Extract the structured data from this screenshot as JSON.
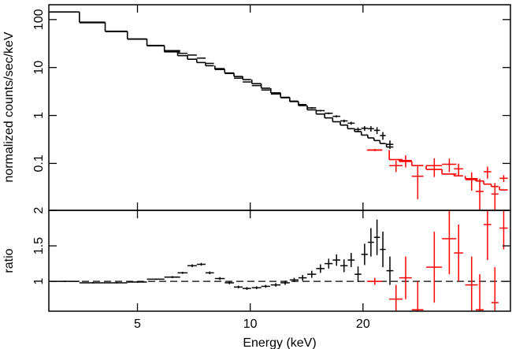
{
  "chart_data": [
    {
      "type": "errorbar",
      "ylabel": "normalized counts/sec/keV",
      "log_y": true,
      "xlim": [
        2.9,
        49.5
      ],
      "ylim": [
        0.0105,
        204
      ],
      "yticks": [
        0.1,
        1,
        10,
        100
      ],
      "series": [
        {
          "color": "#000000",
          "x": [
            3.2,
            3.8,
            4.4,
            5.0,
            5.6,
            6.2,
            6.6,
            7.0,
            7.4,
            7.8,
            8.3,
            8.8,
            9.3,
            9.8,
            10.4,
            11.0,
            11.7,
            12.4,
            13.1,
            13.8,
            14.6,
            15.4,
            16.2,
            17.0,
            17.8,
            18.6,
            19.4,
            20.2,
            21.0,
            21.8,
            22.6,
            23.6
          ],
          "xerr": [
            0.3,
            0.3,
            0.3,
            0.3,
            0.3,
            0.3,
            0.2,
            0.2,
            0.2,
            0.2,
            0.25,
            0.25,
            0.25,
            0.25,
            0.3,
            0.3,
            0.35,
            0.35,
            0.35,
            0.35,
            0.4,
            0.4,
            0.4,
            0.4,
            0.4,
            0.4,
            0.4,
            0.4,
            0.4,
            0.4,
            0.4,
            0.5
          ],
          "values": [
            144,
            86,
            56,
            39,
            29,
            22.5,
            19.8,
            18.2,
            15.7,
            12.2,
            9.5,
            7.5,
            6.0,
            5.0,
            4.2,
            3.4,
            2.8,
            2.34,
            1.99,
            1.69,
            1.44,
            1.26,
            1.11,
            0.96,
            0.77,
            0.69,
            0.51,
            0.54,
            0.53,
            0.49,
            0.38,
            0.25
          ],
          "yerr": [
            1.5,
            0.9,
            0.6,
            0.4,
            0.3,
            0.3,
            0.3,
            0.3,
            0.25,
            0.2,
            0.15,
            0.12,
            0.1,
            0.09,
            0.08,
            0.07,
            0.06,
            0.06,
            0.05,
            0.05,
            0.05,
            0.05,
            0.05,
            0.05,
            0.05,
            0.05,
            0.05,
            0.06,
            0.07,
            0.08,
            0.07,
            0.05
          ],
          "model": [
            144,
            88,
            57,
            39.5,
            28.5,
            21.2,
            17.7,
            14.9,
            12.7,
            10.9,
            9.1,
            7.7,
            6.5,
            5.6,
            4.6,
            3.7,
            2.96,
            2.39,
            1.95,
            1.61,
            1.31,
            1.07,
            0.89,
            0.74,
            0.63,
            0.53,
            0.46,
            0.39,
            0.34,
            0.3,
            0.26,
            0.22
          ]
        },
        {
          "color": "#ff0000",
          "x": [
            21.5,
            24.5,
            26,
            28,
            31,
            34,
            36,
            39,
            41,
            43,
            45,
            47.5
          ],
          "xerr": [
            1,
            1,
            1,
            1,
            1.5,
            1.5,
            1,
            1.5,
            1,
            1,
            1,
            1.2
          ],
          "values": [
            0.19,
            0.09,
            0.115,
            0.054,
            0.09,
            0.096,
            0.077,
            0.046,
            0.026,
            0.067,
            0.023,
            0.049
          ],
          "yerr": [
            0.01,
            0.024,
            0.033,
            0.036,
            0.038,
            0.03,
            0.022,
            0.019,
            0.022,
            0.019,
            0.016,
            0.008
          ],
          "model": [
            0.19,
            0.12,
            0.11,
            0.09,
            0.075,
            0.06,
            0.055,
            0.048,
            0.043,
            0.037,
            0.033,
            0.028
          ]
        }
      ]
    },
    {
      "type": "errorbar",
      "ylabel": "ratio",
      "xlabel": "Energy (keV)",
      "xlim": [
        2.9,
        49.5
      ],
      "xticks": [
        5,
        10,
        20
      ],
      "ylim": [
        0.58,
        2
      ],
      "yticks": [
        1,
        1.5,
        2
      ],
      "reference": 1,
      "series": [
        {
          "color": "#000000",
          "x": [
            3.2,
            3.8,
            4.4,
            5.0,
            5.6,
            6.2,
            6.6,
            7.0,
            7.4,
            7.8,
            8.3,
            8.8,
            9.3,
            9.8,
            10.4,
            11.0,
            11.7,
            12.4,
            13.1,
            13.8,
            14.6,
            15.4,
            16.2,
            17.0,
            17.8,
            18.6,
            19.4,
            20.2,
            21.0,
            21.8,
            22.6,
            23.6
          ],
          "xerr": [
            0.3,
            0.3,
            0.3,
            0.3,
            0.3,
            0.3,
            0.2,
            0.2,
            0.2,
            0.2,
            0.25,
            0.25,
            0.25,
            0.25,
            0.3,
            0.3,
            0.35,
            0.35,
            0.35,
            0.35,
            0.4,
            0.4,
            0.4,
            0.4,
            0.4,
            0.4,
            0.4,
            0.4,
            0.4,
            0.4,
            0.4,
            0.5
          ],
          "values": [
            1.0,
            0.98,
            0.98,
            0.99,
            1.03,
            1.06,
            1.12,
            1.22,
            1.24,
            1.12,
            1.04,
            0.98,
            0.92,
            0.9,
            0.91,
            0.93,
            0.95,
            0.98,
            1.02,
            1.05,
            1.1,
            1.18,
            1.25,
            1.3,
            1.22,
            1.3,
            1.1,
            1.38,
            1.55,
            1.62,
            1.45,
            1.15
          ],
          "yerr": [
            0.01,
            0.01,
            0.01,
            0.01,
            0.01,
            0.015,
            0.015,
            0.02,
            0.02,
            0.02,
            0.02,
            0.02,
            0.02,
            0.02,
            0.02,
            0.02,
            0.025,
            0.03,
            0.03,
            0.04,
            0.05,
            0.06,
            0.07,
            0.08,
            0.09,
            0.1,
            0.11,
            0.15,
            0.2,
            0.25,
            0.25,
            0.2
          ]
        },
        {
          "color": "#ff0000",
          "x": [
            21.5,
            24.5,
            26,
            28,
            31,
            34,
            36,
            39,
            41,
            43,
            45,
            47.5
          ],
          "xerr": [
            1,
            1,
            1,
            1,
            1.5,
            1.5,
            1,
            1.5,
            1,
            1,
            1,
            1.2
          ],
          "values": [
            1.0,
            0.75,
            1.05,
            0.6,
            1.2,
            1.6,
            1.4,
            0.95,
            0.6,
            1.8,
            0.7,
            1.75
          ],
          "yerr": [
            0.05,
            0.2,
            0.3,
            0.4,
            0.5,
            0.5,
            0.4,
            0.4,
            0.5,
            0.5,
            0.5,
            0.3
          ]
        }
      ]
    }
  ]
}
